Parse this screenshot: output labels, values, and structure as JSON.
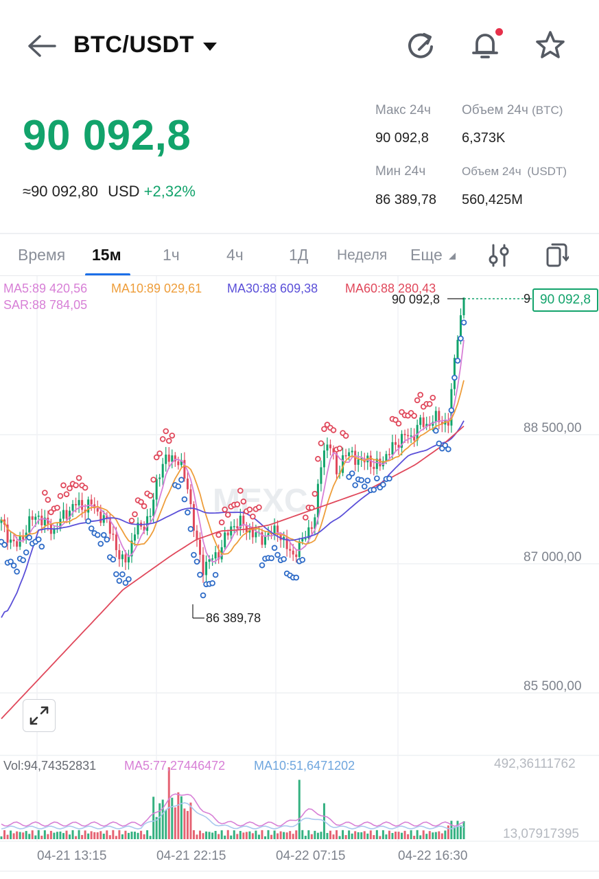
{
  "header": {
    "pair": "BTC/USDT",
    "icons": [
      "back-arrow-icon",
      "dropdown-caret-icon",
      "refresh-icon",
      "bell-icon",
      "star-icon"
    ],
    "notification_dot_color": "#e6304a"
  },
  "price": {
    "last": "90 092,8",
    "approx_usd": "≈90 092,80",
    "currency": "USD",
    "change": "+2,32%"
  },
  "stats": {
    "high_label": "Макс 24ч",
    "high_value": "90 092,8",
    "low_label": "Мин 24ч",
    "low_value": "86 389,78",
    "vol_btc_label": "Объем 24ч",
    "vol_btc_unit": "(BTC)",
    "vol_btc_value": "6,373K",
    "vol_usdt_label": "Объем 24ч",
    "vol_usdt_unit": "(USDT)",
    "vol_usdt_value": "560,425M"
  },
  "tabs": [
    {
      "label": "Время"
    },
    {
      "label": "15м",
      "active": true
    },
    {
      "label": "1ч"
    },
    {
      "label": "4ч"
    },
    {
      "label": "1Д"
    },
    {
      "label": "Неделя"
    },
    {
      "label": "Еще"
    }
  ],
  "chart": {
    "indicators": {
      "ma5": "MA5:89 420,56",
      "ma10": "MA10:89 029,61",
      "ma30": "MA30:88 609,38",
      "ma60": "MA60:88 280,43",
      "sar": "SAR:88 784,05"
    },
    "colors": {
      "up": "#12a36b",
      "down": "#e0485b",
      "ma5": "#d77fd6",
      "ma10": "#ee9d3a",
      "ma30": "#5a4fd8",
      "ma60": "#e0485b",
      "sar_up": "#2e6bc7",
      "sar_down": "#e0485b"
    },
    "price_axis": [
      "88 500,00",
      "87 000,00",
      "85 500,00"
    ],
    "high_marker": "90 092,8",
    "low_marker": "86 389,78",
    "current_price": "90 092,8",
    "current_price_cut": "9",
    "watermark": "MEXC",
    "volume": {
      "vol": "Vol:94,74352831",
      "ma5": "MA5:77,27446472",
      "ma10": "MA10:51,6471202",
      "max": "492,36111762",
      "min": "13,07917395"
    },
    "time_axis": [
      "04-21 13:15",
      "04-21 22:15",
      "04-22 07:15",
      "04-22 16:30"
    ]
  },
  "chart_data": {
    "type": "candlestick",
    "title": "BTC/USDT 15м",
    "interval": "15м",
    "x_ticks": [
      "04-21 13:15",
      "04-21 22:15",
      "04-22 07:15",
      "04-22 16:30"
    ],
    "y_ticks": [
      88500,
      87000,
      85500
    ],
    "high": 90092.8,
    "low": 86389.78,
    "last": 90092.8,
    "indicators": {
      "MA5": 89420.56,
      "MA10": 89029.61,
      "MA30": 88609.38,
      "MA60": 88280.43,
      "SAR": 88784.05
    },
    "volume": {
      "last": 94.74352831,
      "MA5": 77.27446472,
      "MA10": 51.6471202,
      "axis_max": 492.36111762,
      "axis_min": 13.07917395
    },
    "close_path": [
      87480,
      87300,
      87200,
      87350,
      87520,
      87560,
      87450,
      87380,
      87520,
      87620,
      87700,
      87650,
      87700,
      87580,
      87500,
      87320,
      87000,
      87100,
      87400,
      87450,
      87550,
      88050,
      88200,
      88250,
      88150,
      87900,
      87300,
      86950,
      87050,
      87100,
      87300,
      87450,
      87480,
      87400,
      87330,
      87300,
      87350,
      87400,
      87220,
      87100,
      87200,
      87380,
      87500,
      88300,
      88400,
      88050,
      88250,
      88300,
      88150,
      88250,
      88100,
      88200,
      88300,
      88400,
      88500,
      88450,
      88650,
      88600,
      88700,
      88650,
      88650,
      89600,
      90092.8
    ],
    "ma60_path": [
      85200,
      85500,
      85800,
      86100,
      86400,
      86700,
      86900,
      87100,
      87280,
      87380,
      87400,
      87450,
      87550,
      87650,
      87750,
      87850,
      88000,
      88150,
      88350,
      88600
    ]
  }
}
